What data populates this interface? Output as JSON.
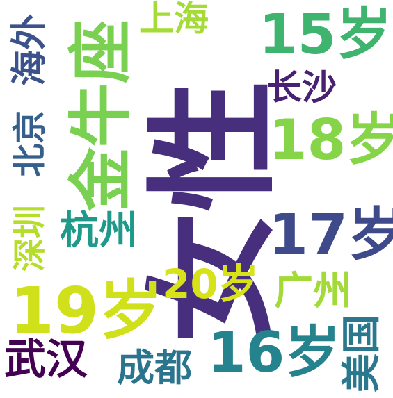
{
  "words": [
    {
      "text": "女性",
      "color": "#472f7d",
      "orientation": "vertical"
    },
    {
      "text": "金牛座",
      "color": "#7ad151",
      "orientation": "vertical"
    },
    {
      "text": "15岁",
      "color": "#3eb46e",
      "orientation": "horizontal"
    },
    {
      "text": "上海",
      "color": "#a5db36",
      "orientation": "horizontal"
    },
    {
      "text": "海外",
      "color": "#3b528b",
      "orientation": "vertical"
    },
    {
      "text": "长沙",
      "color": "#482173",
      "orientation": "horizontal"
    },
    {
      "text": "18岁",
      "color": "#86d549",
      "orientation": "horizontal"
    },
    {
      "text": "北京",
      "color": "#355f8d",
      "orientation": "vertical"
    },
    {
      "text": "深圳",
      "color": "#b5de2b",
      "orientation": "vertical"
    },
    {
      "text": "杭州",
      "color": "#1f9a8a",
      "orientation": "horizontal"
    },
    {
      "text": "17岁",
      "color": "#3e4a89",
      "orientation": "horizontal"
    },
    {
      "text": "20岁",
      "color": "#d8e219",
      "orientation": "horizontal"
    },
    {
      "text": "广州",
      "color": "#a2da37",
      "orientation": "horizontal"
    },
    {
      "text": "19岁",
      "color": "#d0e11c",
      "orientation": "horizontal"
    },
    {
      "text": "16岁",
      "color": "#25838e",
      "orientation": "horizontal"
    },
    {
      "text": "美国",
      "color": "#2a788e",
      "orientation": "vertical"
    },
    {
      "text": "武汉",
      "color": "#440154",
      "orientation": "horizontal"
    },
    {
      "text": "成都",
      "color": "#2b748e",
      "orientation": "horizontal"
    }
  ]
}
